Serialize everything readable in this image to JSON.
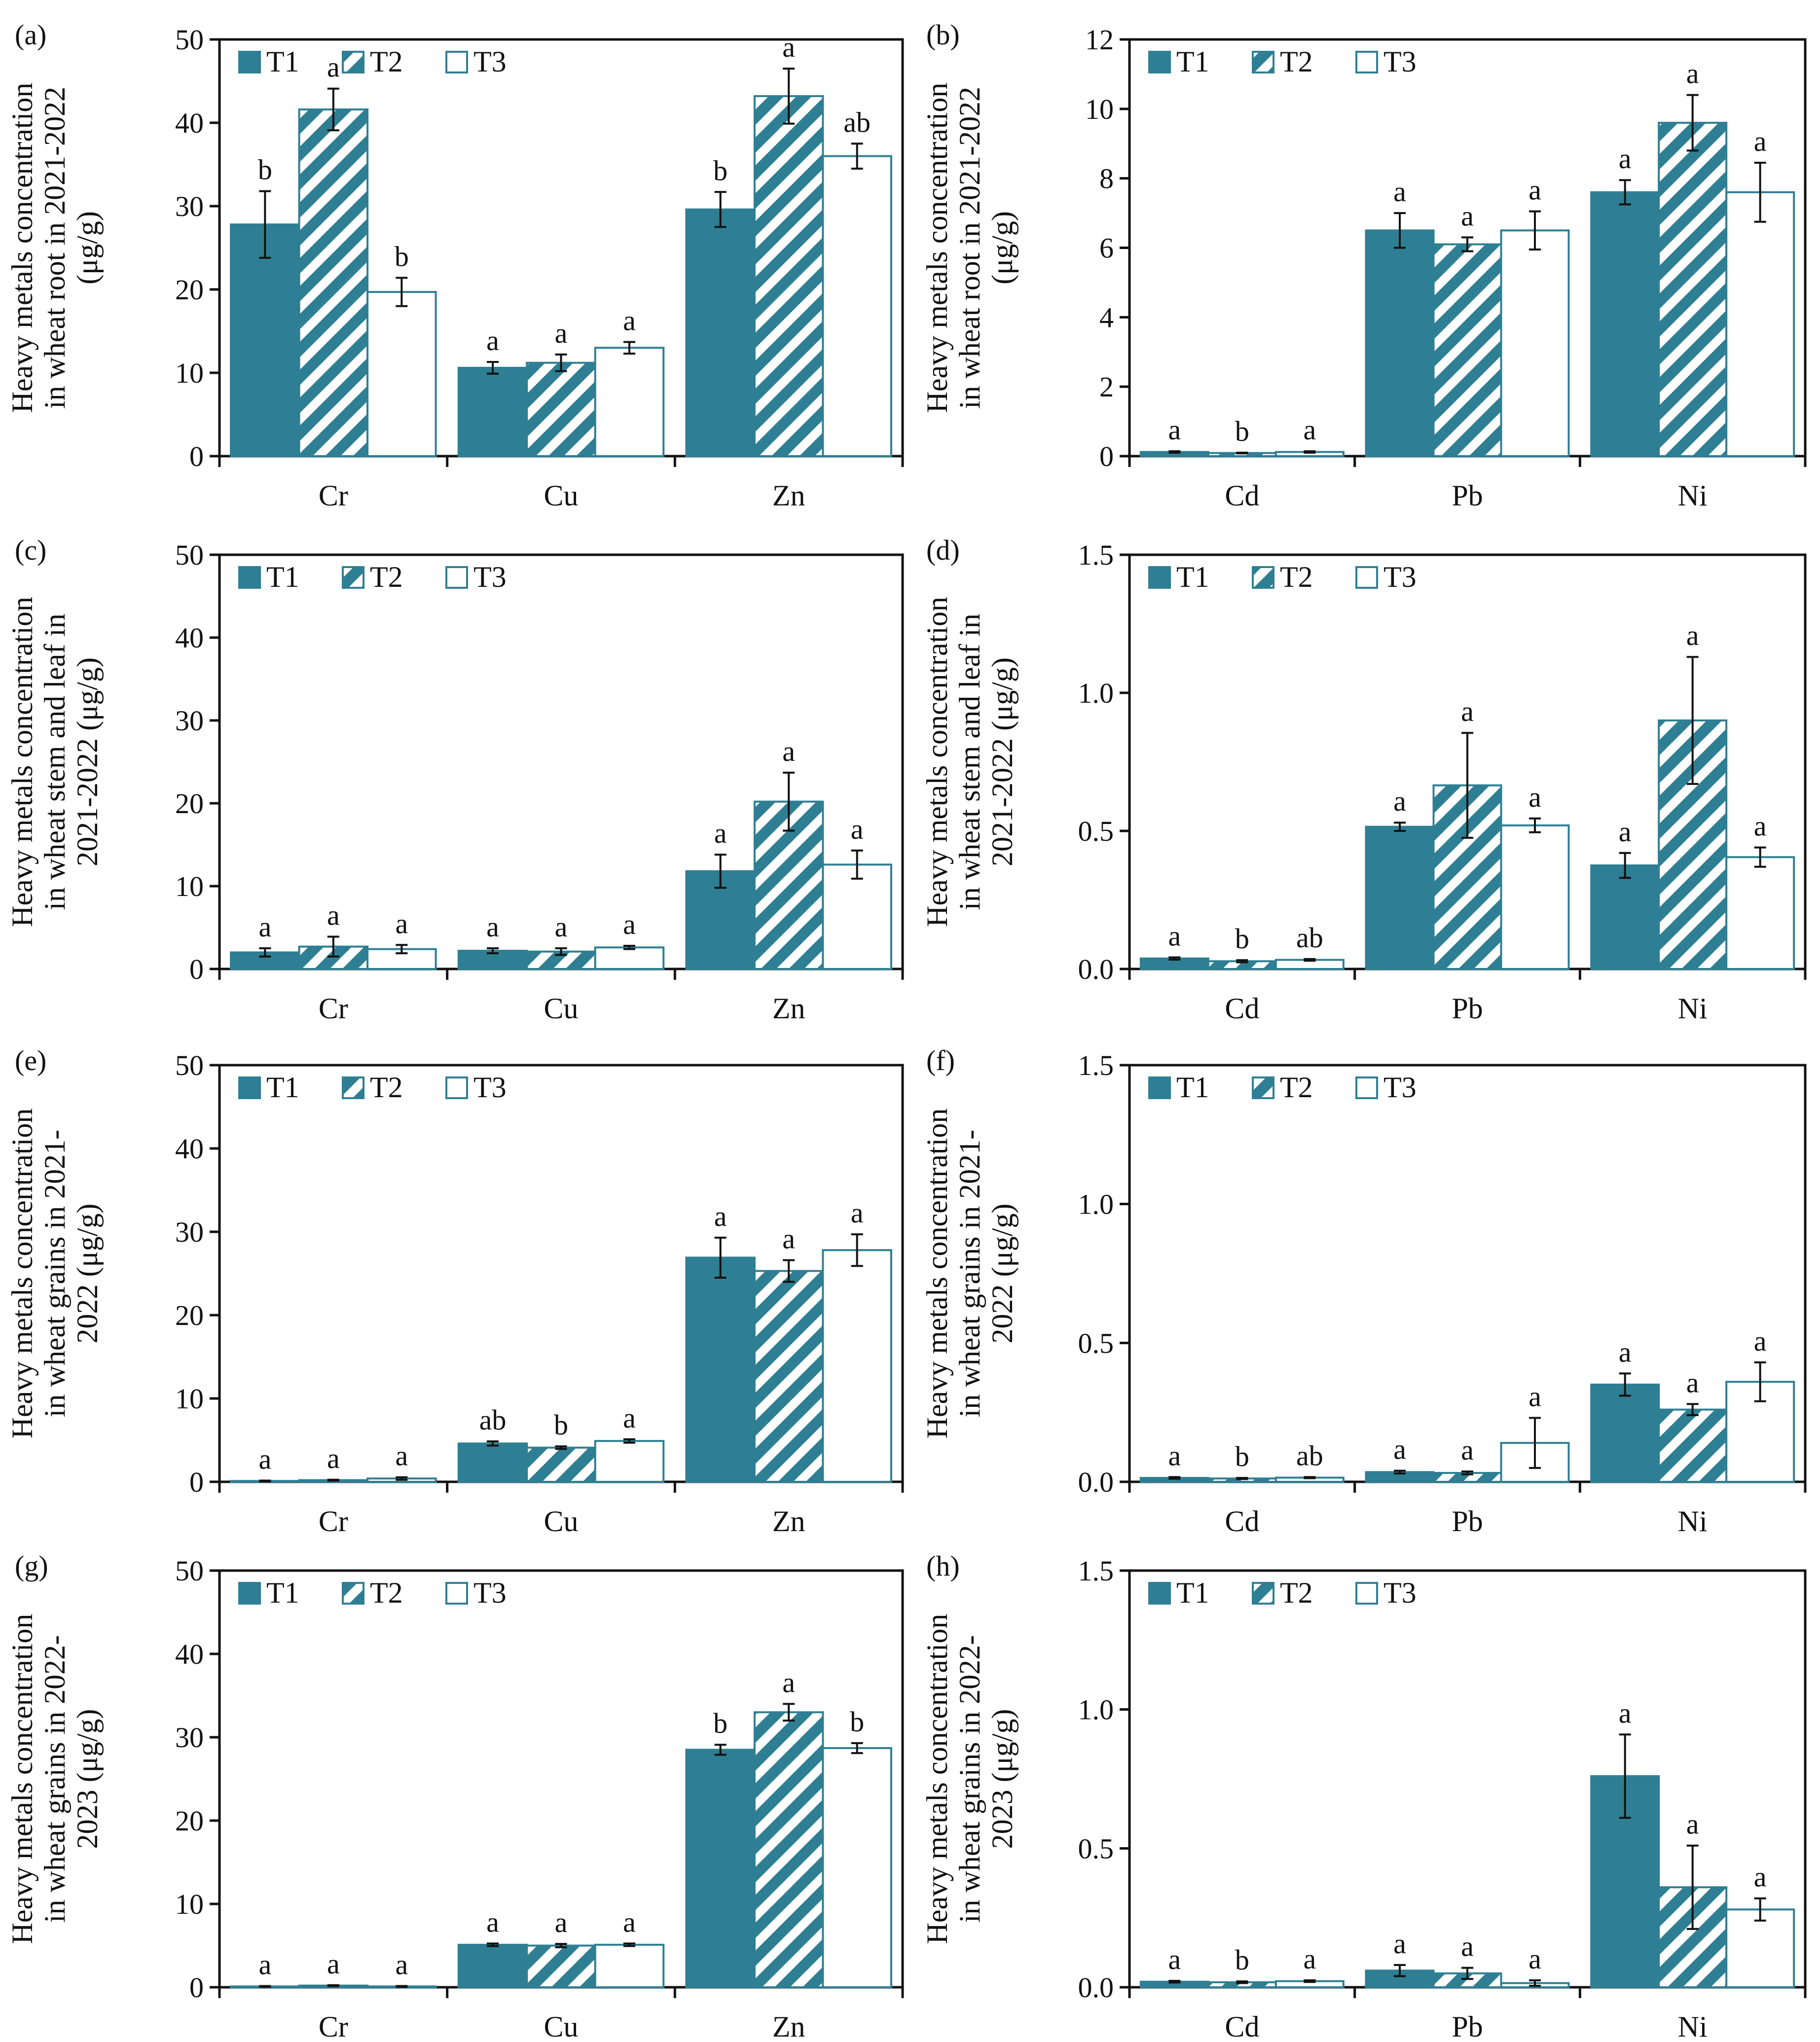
{
  "figure": {
    "colors": {
      "t1": "#2e7f93",
      "t2": "#2e7f93",
      "t3": "#ffffff",
      "stroke": "#2e7f93",
      "axis": "#111111"
    },
    "legend": [
      "T1",
      "T2",
      "T3"
    ]
  },
  "chart_data": [
    {
      "panel": "(a)",
      "type": "bar",
      "ylabel": [
        "Heavy metals concentration",
        "in wheat root in 2021-2022",
        "(μg/g)"
      ],
      "categories": [
        "Cr",
        "Cu",
        "Zn"
      ],
      "ylim": [
        0,
        50
      ],
      "yticks": [
        "0",
        "10",
        "20",
        "30",
        "40",
        "50"
      ],
      "tickvals": [
        0,
        10,
        20,
        30,
        40,
        50
      ],
      "series": [
        {
          "name": "T1",
          "values": [
            27.8,
            10.6,
            29.6
          ],
          "errors": [
            4.0,
            0.7,
            2.1
          ],
          "letters": [
            "b",
            "a",
            "b"
          ]
        },
        {
          "name": "T2",
          "values": [
            41.6,
            11.2,
            43.2
          ],
          "errors": [
            2.5,
            1.0,
            3.3
          ],
          "letters": [
            "a",
            "a",
            "a"
          ]
        },
        {
          "name": "T3",
          "values": [
            19.7,
            13.0,
            36.0
          ],
          "errors": [
            1.7,
            0.7,
            1.5
          ],
          "letters": [
            "b",
            "a",
            "ab"
          ]
        }
      ]
    },
    {
      "panel": "(b)",
      "type": "bar",
      "ylabel": [
        "Heavy metals concentration",
        "in wheat root in 2021-2022",
        "(μg/g)"
      ],
      "categories": [
        "Cd",
        "Pb",
        "Ni"
      ],
      "ylim": [
        0,
        12
      ],
      "yticks": [
        "0",
        "2",
        "4",
        "6",
        "8",
        "10",
        "12"
      ],
      "tickvals": [
        0,
        2,
        4,
        6,
        8,
        10,
        12
      ],
      "series": [
        {
          "name": "T1",
          "values": [
            0.12,
            6.5,
            7.6
          ],
          "errors": [
            0.02,
            0.5,
            0.35
          ],
          "letters": [
            "a",
            "a",
            "a"
          ]
        },
        {
          "name": "T2",
          "values": [
            0.09,
            6.1,
            9.6
          ],
          "errors": [
            0.01,
            0.2,
            0.8
          ],
          "letters": [
            "b",
            "a",
            "a"
          ]
        },
        {
          "name": "T3",
          "values": [
            0.12,
            6.5,
            7.6
          ],
          "errors": [
            0.02,
            0.55,
            0.85
          ],
          "letters": [
            "a",
            "a",
            "a"
          ]
        }
      ]
    },
    {
      "panel": "(c)",
      "type": "bar",
      "ylabel": [
        "Heavy metals concentration",
        "in wheat  stem and leaf in",
        "2021-2022 (μg/g)"
      ],
      "categories": [
        "Cr",
        "Cu",
        "Zn"
      ],
      "ylim": [
        0,
        50
      ],
      "yticks": [
        "0",
        "10",
        "20",
        "30",
        "40",
        "50"
      ],
      "tickvals": [
        0,
        10,
        20,
        30,
        40,
        50
      ],
      "series": [
        {
          "name": "T1",
          "values": [
            2.0,
            2.2,
            11.8
          ],
          "errors": [
            0.5,
            0.3,
            2.0
          ],
          "letters": [
            "a",
            "a",
            "a"
          ]
        },
        {
          "name": "T2",
          "values": [
            2.7,
            2.1,
            20.2
          ],
          "errors": [
            1.2,
            0.4,
            3.5
          ],
          "letters": [
            "a",
            "a",
            "a"
          ]
        },
        {
          "name": "T3",
          "values": [
            2.4,
            2.6,
            12.6
          ],
          "errors": [
            0.5,
            0.2,
            1.7
          ],
          "letters": [
            "a",
            "a",
            "a"
          ]
        }
      ]
    },
    {
      "panel": "(d)",
      "type": "bar",
      "ylabel": [
        "Heavy metals concentration",
        "in wheat  stem and leaf in",
        "2021-2022 (μg/g)"
      ],
      "categories": [
        "Cd",
        "Pb",
        "Ni"
      ],
      "ylim": [
        0,
        1.5
      ],
      "yticks": [
        "0.0",
        "0.5",
        "1.0",
        "1.5"
      ],
      "tickvals": [
        0,
        0.5,
        1.0,
        1.5
      ],
      "series": [
        {
          "name": "T1",
          "values": [
            0.038,
            0.515,
            0.375
          ],
          "errors": [
            0.004,
            0.015,
            0.045
          ],
          "letters": [
            "a",
            "a",
            "a"
          ]
        },
        {
          "name": "T2",
          "values": [
            0.028,
            0.665,
            0.9
          ],
          "errors": [
            0.004,
            0.19,
            0.23
          ],
          "letters": [
            "b",
            "a",
            "a"
          ]
        },
        {
          "name": "T3",
          "values": [
            0.033,
            0.52,
            0.405
          ],
          "errors": [
            0.003,
            0.025,
            0.035
          ],
          "letters": [
            "ab",
            "a",
            "a"
          ]
        }
      ]
    },
    {
      "panel": "(e)",
      "type": "bar",
      "ylabel": [
        "Heavy metals concentration",
        "in wheat grains in 2021-",
        "2022 (μg/g)"
      ],
      "categories": [
        "Cr",
        "Cu",
        "Zn"
      ],
      "ylim": [
        0,
        50
      ],
      "yticks": [
        "0",
        "10",
        "20",
        "30",
        "40",
        "50"
      ],
      "tickvals": [
        0,
        10,
        20,
        30,
        40,
        50
      ],
      "series": [
        {
          "name": "T1",
          "values": [
            0.1,
            4.6,
            26.9
          ],
          "errors": [
            0.05,
            0.25,
            2.4
          ],
          "letters": [
            "a",
            "ab",
            "a"
          ]
        },
        {
          "name": "T2",
          "values": [
            0.2,
            4.1,
            25.3
          ],
          "errors": [
            0.05,
            0.15,
            1.3
          ],
          "letters": [
            "a",
            "b",
            "a"
          ]
        },
        {
          "name": "T3",
          "values": [
            0.4,
            4.9,
            27.8
          ],
          "errors": [
            0.15,
            0.2,
            1.9
          ],
          "letters": [
            "a",
            "a",
            "a"
          ]
        }
      ]
    },
    {
      "panel": "(f)",
      "type": "bar",
      "ylabel": [
        "Heavy metals concentration",
        "in wheat grains in 2021-",
        "2022 (μg/g)"
      ],
      "categories": [
        "Cd",
        "Pb",
        "Ni"
      ],
      "ylim": [
        0,
        1.5
      ],
      "yticks": [
        "0.0",
        "0.5",
        "1.0",
        "1.5"
      ],
      "tickvals": [
        0,
        0.5,
        1.0,
        1.5
      ],
      "series": [
        {
          "name": "T1",
          "values": [
            0.014,
            0.035,
            0.35
          ],
          "errors": [
            0.003,
            0.005,
            0.04
          ],
          "letters": [
            "a",
            "a",
            "a"
          ]
        },
        {
          "name": "T2",
          "values": [
            0.012,
            0.032,
            0.26
          ],
          "errors": [
            0.002,
            0.005,
            0.02
          ],
          "letters": [
            "b",
            "a",
            "a"
          ]
        },
        {
          "name": "T3",
          "values": [
            0.015,
            0.14,
            0.36
          ],
          "errors": [
            0.002,
            0.09,
            0.07
          ],
          "letters": [
            "ab",
            "a",
            "a"
          ]
        }
      ]
    },
    {
      "panel": "(g)",
      "type": "bar",
      "ylabel": [
        "Heavy metals concentration",
        "in wheat grains in 2022-",
        "2023 (μg/g)"
      ],
      "categories": [
        "Cr",
        "Cu",
        "Zn"
      ],
      "ylim": [
        0,
        50
      ],
      "yticks": [
        "0",
        "10",
        "20",
        "30",
        "40",
        "50"
      ],
      "tickvals": [
        0,
        10,
        20,
        30,
        40,
        50
      ],
      "series": [
        {
          "name": "T1",
          "values": [
            0.1,
            5.1,
            28.5
          ],
          "errors": [
            0.05,
            0.15,
            0.6
          ],
          "letters": [
            "a",
            "a",
            "b"
          ]
        },
        {
          "name": "T2",
          "values": [
            0.2,
            5.0,
            33.0
          ],
          "errors": [
            0.05,
            0.2,
            1.0
          ],
          "letters": [
            "a",
            "a",
            "a"
          ]
        },
        {
          "name": "T3",
          "values": [
            0.1,
            5.1,
            28.7
          ],
          "errors": [
            0.05,
            0.15,
            0.6
          ],
          "letters": [
            "a",
            "a",
            "b"
          ]
        }
      ]
    },
    {
      "panel": "(h)",
      "type": "bar",
      "ylabel": [
        "Heavy metals concentration",
        "in wheat grains in 2022-",
        "2023 (μg/g)"
      ],
      "categories": [
        "Cd",
        "Pb",
        "Ni"
      ],
      "ylim": [
        0,
        1.5
      ],
      "yticks": [
        "0.0",
        "0.5",
        "1.0",
        "1.5"
      ],
      "tickvals": [
        0,
        0.5,
        1.0,
        1.5
      ],
      "series": [
        {
          "name": "T1",
          "values": [
            0.02,
            0.06,
            0.76
          ],
          "errors": [
            0.003,
            0.02,
            0.15
          ],
          "letters": [
            "a",
            "a",
            "a"
          ]
        },
        {
          "name": "T2",
          "values": [
            0.018,
            0.05,
            0.36
          ],
          "errors": [
            0.003,
            0.02,
            0.15
          ],
          "letters": [
            "b",
            "a",
            "a"
          ]
        },
        {
          "name": "T3",
          "values": [
            0.022,
            0.015,
            0.28
          ],
          "errors": [
            0.003,
            0.01,
            0.04
          ],
          "letters": [
            "a",
            "a",
            "a"
          ]
        }
      ]
    }
  ]
}
